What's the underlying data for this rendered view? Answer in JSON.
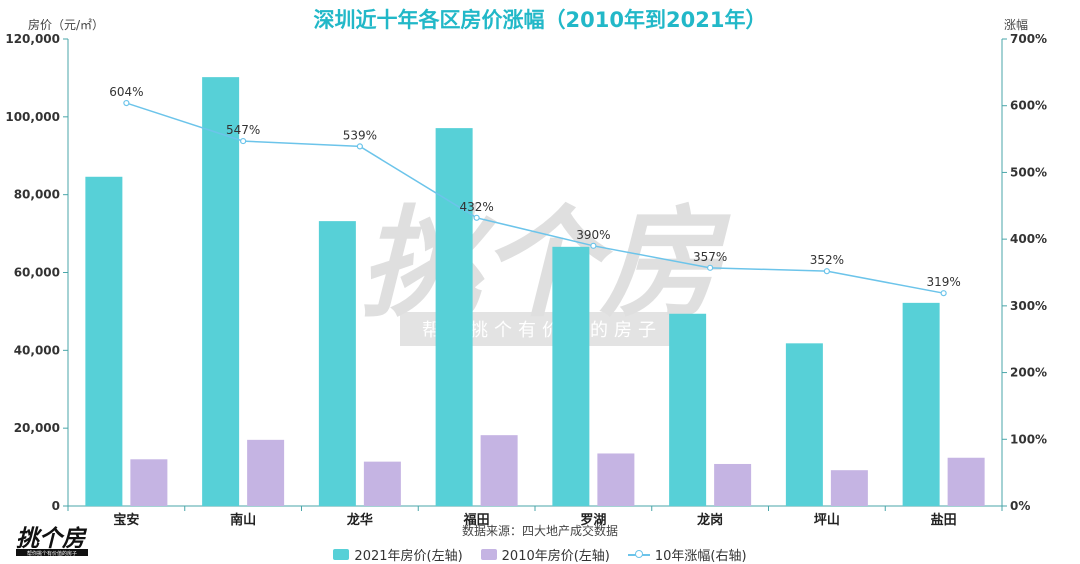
{
  "chart_data": {
    "type": "bar",
    "title": "深圳近十年各区房价涨幅（2010年到2021年）",
    "ylabel": "房价（元/㎡）",
    "ylabel_right": "涨幅",
    "source_note": "数据来源：四大地产成交数据",
    "categories": [
      "宝安",
      "南山",
      "龙华",
      "福田",
      "罗湖",
      "龙岗",
      "坪山",
      "盐田"
    ],
    "ylim": [
      0,
      120000
    ],
    "ylim_right": [
      0,
      700
    ],
    "yticks": [
      "0",
      "20,000",
      "40,000",
      "60,000",
      "80,000",
      "100,000",
      "120,000"
    ],
    "yticks_right": [
      "0%",
      "100%",
      "200%",
      "300%",
      "400%",
      "500%",
      "600%",
      "700%"
    ],
    "series": [
      {
        "name": "2021年房价(左轴)",
        "type": "bar",
        "axis": "left",
        "color": "#57d0d7",
        "values": [
          84600,
          110200,
          73200,
          97100,
          66600,
          49400,
          41800,
          52200
        ]
      },
      {
        "name": "2010年房价(左轴)",
        "type": "bar",
        "axis": "left",
        "color": "#c5b4e3",
        "values": [
          12000,
          17000,
          11400,
          18200,
          13500,
          10800,
          9200,
          12400
        ]
      },
      {
        "name": "10年涨幅(右轴)",
        "type": "line",
        "axis": "right",
        "color": "#6cc4ea",
        "values": [
          604,
          547,
          539,
          432,
          390,
          357,
          352,
          319
        ],
        "labels": [
          "604%",
          "547%",
          "539%",
          "432%",
          "390%",
          "357%",
          "352%",
          "319%"
        ]
      }
    ],
    "grid": false,
    "legend_position": "bottom"
  },
  "watermark": {
    "text": "挑个房",
    "slogan": "帮你挑个有价值的房子"
  },
  "logo": {
    "text": "挑个房",
    "slogan": "帮你挑个有价值的房子"
  }
}
